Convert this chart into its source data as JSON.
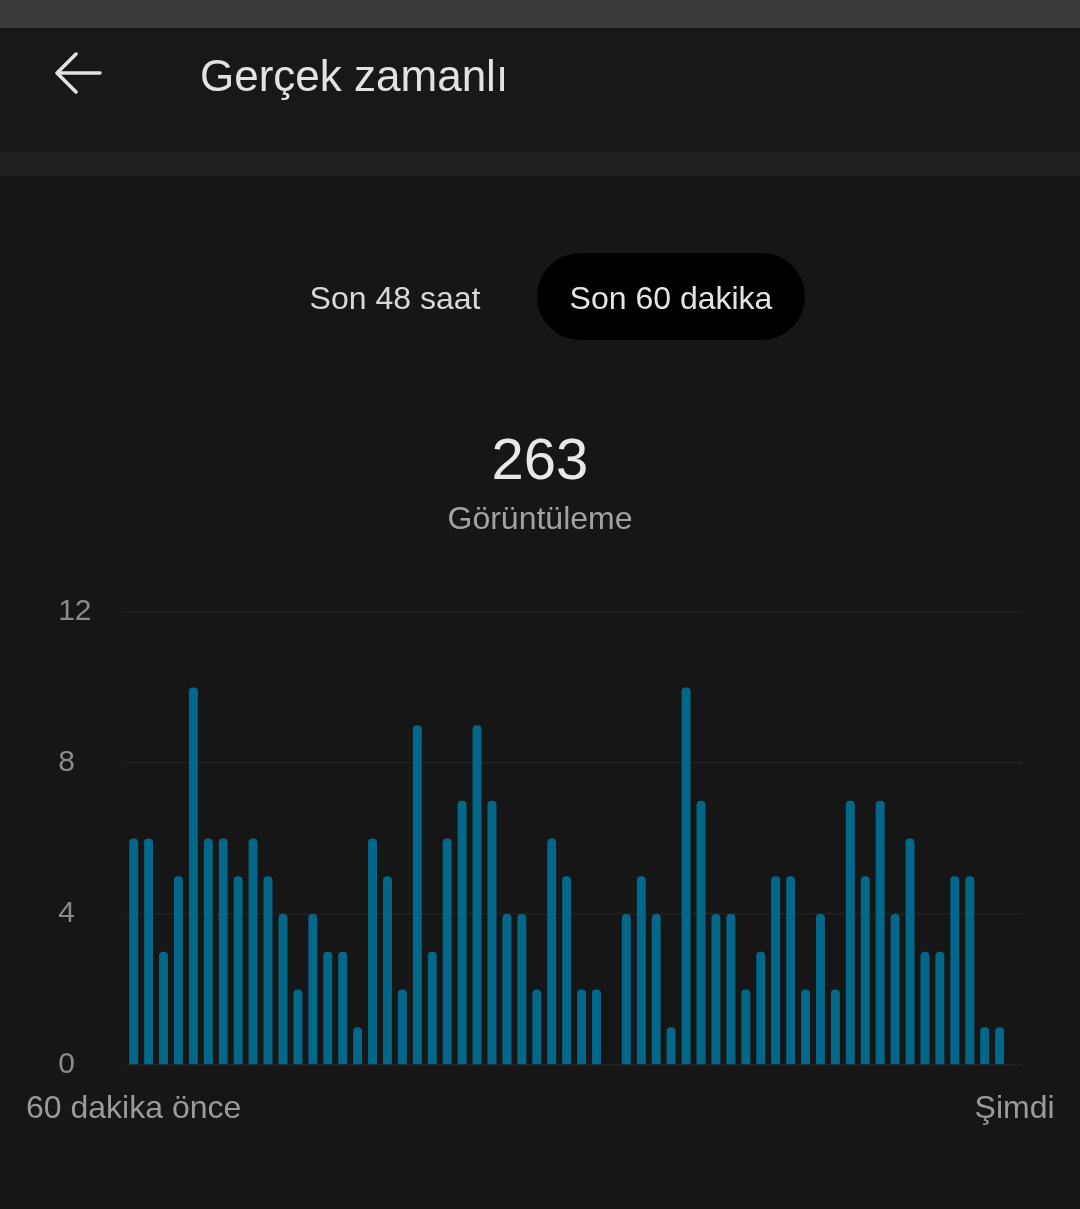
{
  "chart_data": {
    "type": "bar",
    "title": "Gerçek zamanlı",
    "annotations": [
      "Son 48 saat",
      "Son 60 dakika",
      "263",
      "Görüntüleme"
    ],
    "categories": [
      "60 dakika önce",
      null,
      null,
      null,
      null,
      null,
      null,
      null,
      null,
      null,
      null,
      null,
      null,
      null,
      null,
      null,
      null,
      null,
      null,
      null,
      null,
      null,
      null,
      null,
      null,
      null,
      null,
      null,
      null,
      null,
      null,
      null,
      null,
      null,
      null,
      null,
      null,
      null,
      null,
      null,
      null,
      null,
      null,
      null,
      null,
      null,
      null,
      null,
      null,
      null,
      null,
      null,
      null,
      null,
      null,
      null,
      null,
      null,
      null,
      "Şimdi"
    ],
    "values": [
      6,
      6,
      3,
      5,
      10,
      6,
      6,
      5,
      6,
      5,
      4,
      2,
      4,
      3,
      3,
      1,
      6,
      5,
      2,
      9,
      3,
      6,
      7,
      9,
      7,
      4,
      4,
      2,
      6,
      5,
      2,
      2,
      0,
      4,
      5,
      4,
      1,
      10,
      7,
      4,
      4,
      2,
      3,
      5,
      5,
      2,
      4,
      2,
      7,
      5,
      7,
      4,
      6,
      3,
      3,
      5,
      5,
      1,
      1,
      0
    ],
    "color": "#03678a",
    "ylim": [
      0,
      12
    ],
    "yticks": [
      0,
      4,
      8,
      12
    ],
    "grid": "y"
  }
}
